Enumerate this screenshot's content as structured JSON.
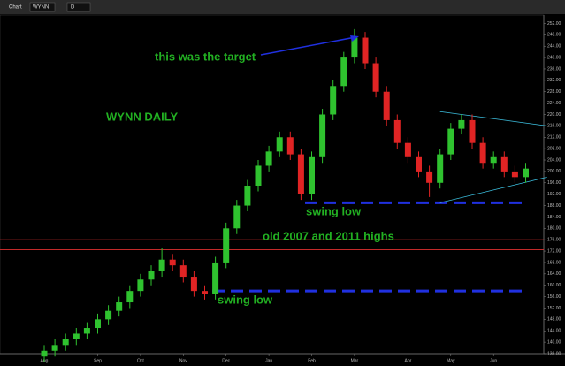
{
  "toolbar": {
    "title": "Chart",
    "symbol": "WYNN",
    "interval": "D"
  },
  "chart_data": {
    "type": "candlestick",
    "title": "WYNN DAILY",
    "categories": [
      "Aug",
      null,
      null,
      null,
      null,
      "Sep",
      null,
      null,
      null,
      "Oct",
      null,
      null,
      null,
      "Nov",
      null,
      null,
      null,
      "Dec",
      null,
      null,
      null,
      "Jan",
      null,
      null,
      null,
      "Feb",
      null,
      null,
      null,
      "Mar",
      null,
      null,
      null,
      null,
      "Apr",
      null,
      null,
      null,
      "May",
      null,
      null,
      null,
      "Jun",
      null,
      null,
      null
    ],
    "open": [
      135,
      137,
      139,
      141,
      143,
      145,
      148,
      151,
      154,
      158,
      162,
      165,
      169,
      167,
      163,
      158,
      157,
      168,
      180,
      188,
      195,
      202,
      207,
      212,
      206,
      192,
      205,
      220,
      230,
      240,
      247,
      238,
      228,
      218,
      210,
      205,
      200,
      196,
      206,
      215,
      218,
      210,
      203,
      205,
      200,
      198
    ],
    "high": [
      139,
      141,
      143,
      145,
      147,
      150,
      153,
      156,
      160,
      164,
      167,
      173,
      171,
      169,
      165,
      160,
      170,
      182,
      190,
      197,
      204,
      209,
      214,
      214,
      208,
      207,
      222,
      232,
      242,
      250,
      249,
      240,
      230,
      220,
      212,
      207,
      202,
      208,
      217,
      220,
      220,
      212,
      207,
      207,
      202,
      203
    ],
    "low": [
      133,
      135,
      137,
      139,
      141,
      143,
      146,
      149,
      152,
      156,
      160,
      163,
      165,
      161,
      156,
      155,
      155,
      166,
      178,
      186,
      193,
      200,
      205,
      204,
      190,
      190,
      203,
      218,
      228,
      238,
      236,
      226,
      216,
      208,
      203,
      198,
      191,
      194,
      204,
      213,
      208,
      201,
      201,
      198,
      196,
      196
    ],
    "close": [
      137,
      139,
      141,
      143,
      145,
      148,
      151,
      154,
      158,
      162,
      165,
      169,
      167,
      163,
      158,
      157,
      168,
      180,
      188,
      195,
      202,
      207,
      212,
      206,
      192,
      205,
      220,
      230,
      240,
      247,
      238,
      228,
      218,
      210,
      205,
      200,
      196,
      206,
      215,
      218,
      210,
      203,
      205,
      200,
      198,
      201
    ],
    "colors": {
      "up": "#2fc22f",
      "down": "#e02424"
    },
    "ylim": [
      136,
      254
    ],
    "yticks": [
      {
        "value": 136,
        "label": "136.00"
      },
      {
        "value": 140,
        "label": "140.00"
      },
      {
        "value": 144,
        "label": "144.00"
      },
      {
        "value": 148,
        "label": "148.00"
      },
      {
        "value": 152,
        "label": "152.00"
      },
      {
        "value": 156,
        "label": "156.00"
      },
      {
        "value": 160,
        "label": "160.00"
      },
      {
        "value": 164,
        "label": "164.00"
      },
      {
        "value": 168,
        "label": "168.00"
      },
      {
        "value": 172,
        "label": "172.00"
      },
      {
        "value": 176,
        "label": "176.00"
      },
      {
        "value": 180,
        "label": "180.00"
      },
      {
        "value": 184,
        "label": "184.00"
      },
      {
        "value": 188,
        "label": "188.00"
      },
      {
        "value": 192,
        "label": "192.00"
      },
      {
        "value": 196,
        "label": "196.00"
      },
      {
        "value": 200,
        "label": "200.00"
      },
      {
        "value": 204,
        "label": "204.00"
      },
      {
        "value": 208,
        "label": "208.00"
      },
      {
        "value": 212,
        "label": "212.00"
      },
      {
        "value": 216,
        "label": "216.00"
      },
      {
        "value": 220,
        "label": "220.00"
      },
      {
        "value": 224,
        "label": "224.00"
      },
      {
        "value": 228,
        "label": "228.00"
      },
      {
        "value": 232,
        "label": "232.00"
      },
      {
        "value": 236,
        "label": "236.00"
      },
      {
        "value": 240,
        "label": "240.00"
      },
      {
        "value": 244,
        "label": "244.00"
      },
      {
        "value": 248,
        "label": "248.00"
      },
      {
        "value": 252,
        "label": "252.00"
      }
    ],
    "levels": [
      {
        "value": 176,
        "color": "#e03030",
        "style": "solid"
      },
      {
        "value": 172.5,
        "color": "#e03030",
        "style": "solid"
      },
      {
        "value": 189,
        "color": "#2030e0",
        "style": "dashed"
      },
      {
        "value": 158,
        "color": "#2030e0",
        "style": "dashed"
      }
    ],
    "annotations": [
      "this was the target",
      "swing low",
      "old 2007 and 2011 highs",
      "swing low"
    ],
    "trendlines": [
      {
        "x": [
          37,
          47
        ],
        "y": [
          221,
          216
        ]
      },
      {
        "x": [
          37,
          47
        ],
        "y": [
          189,
          198
        ]
      }
    ]
  }
}
